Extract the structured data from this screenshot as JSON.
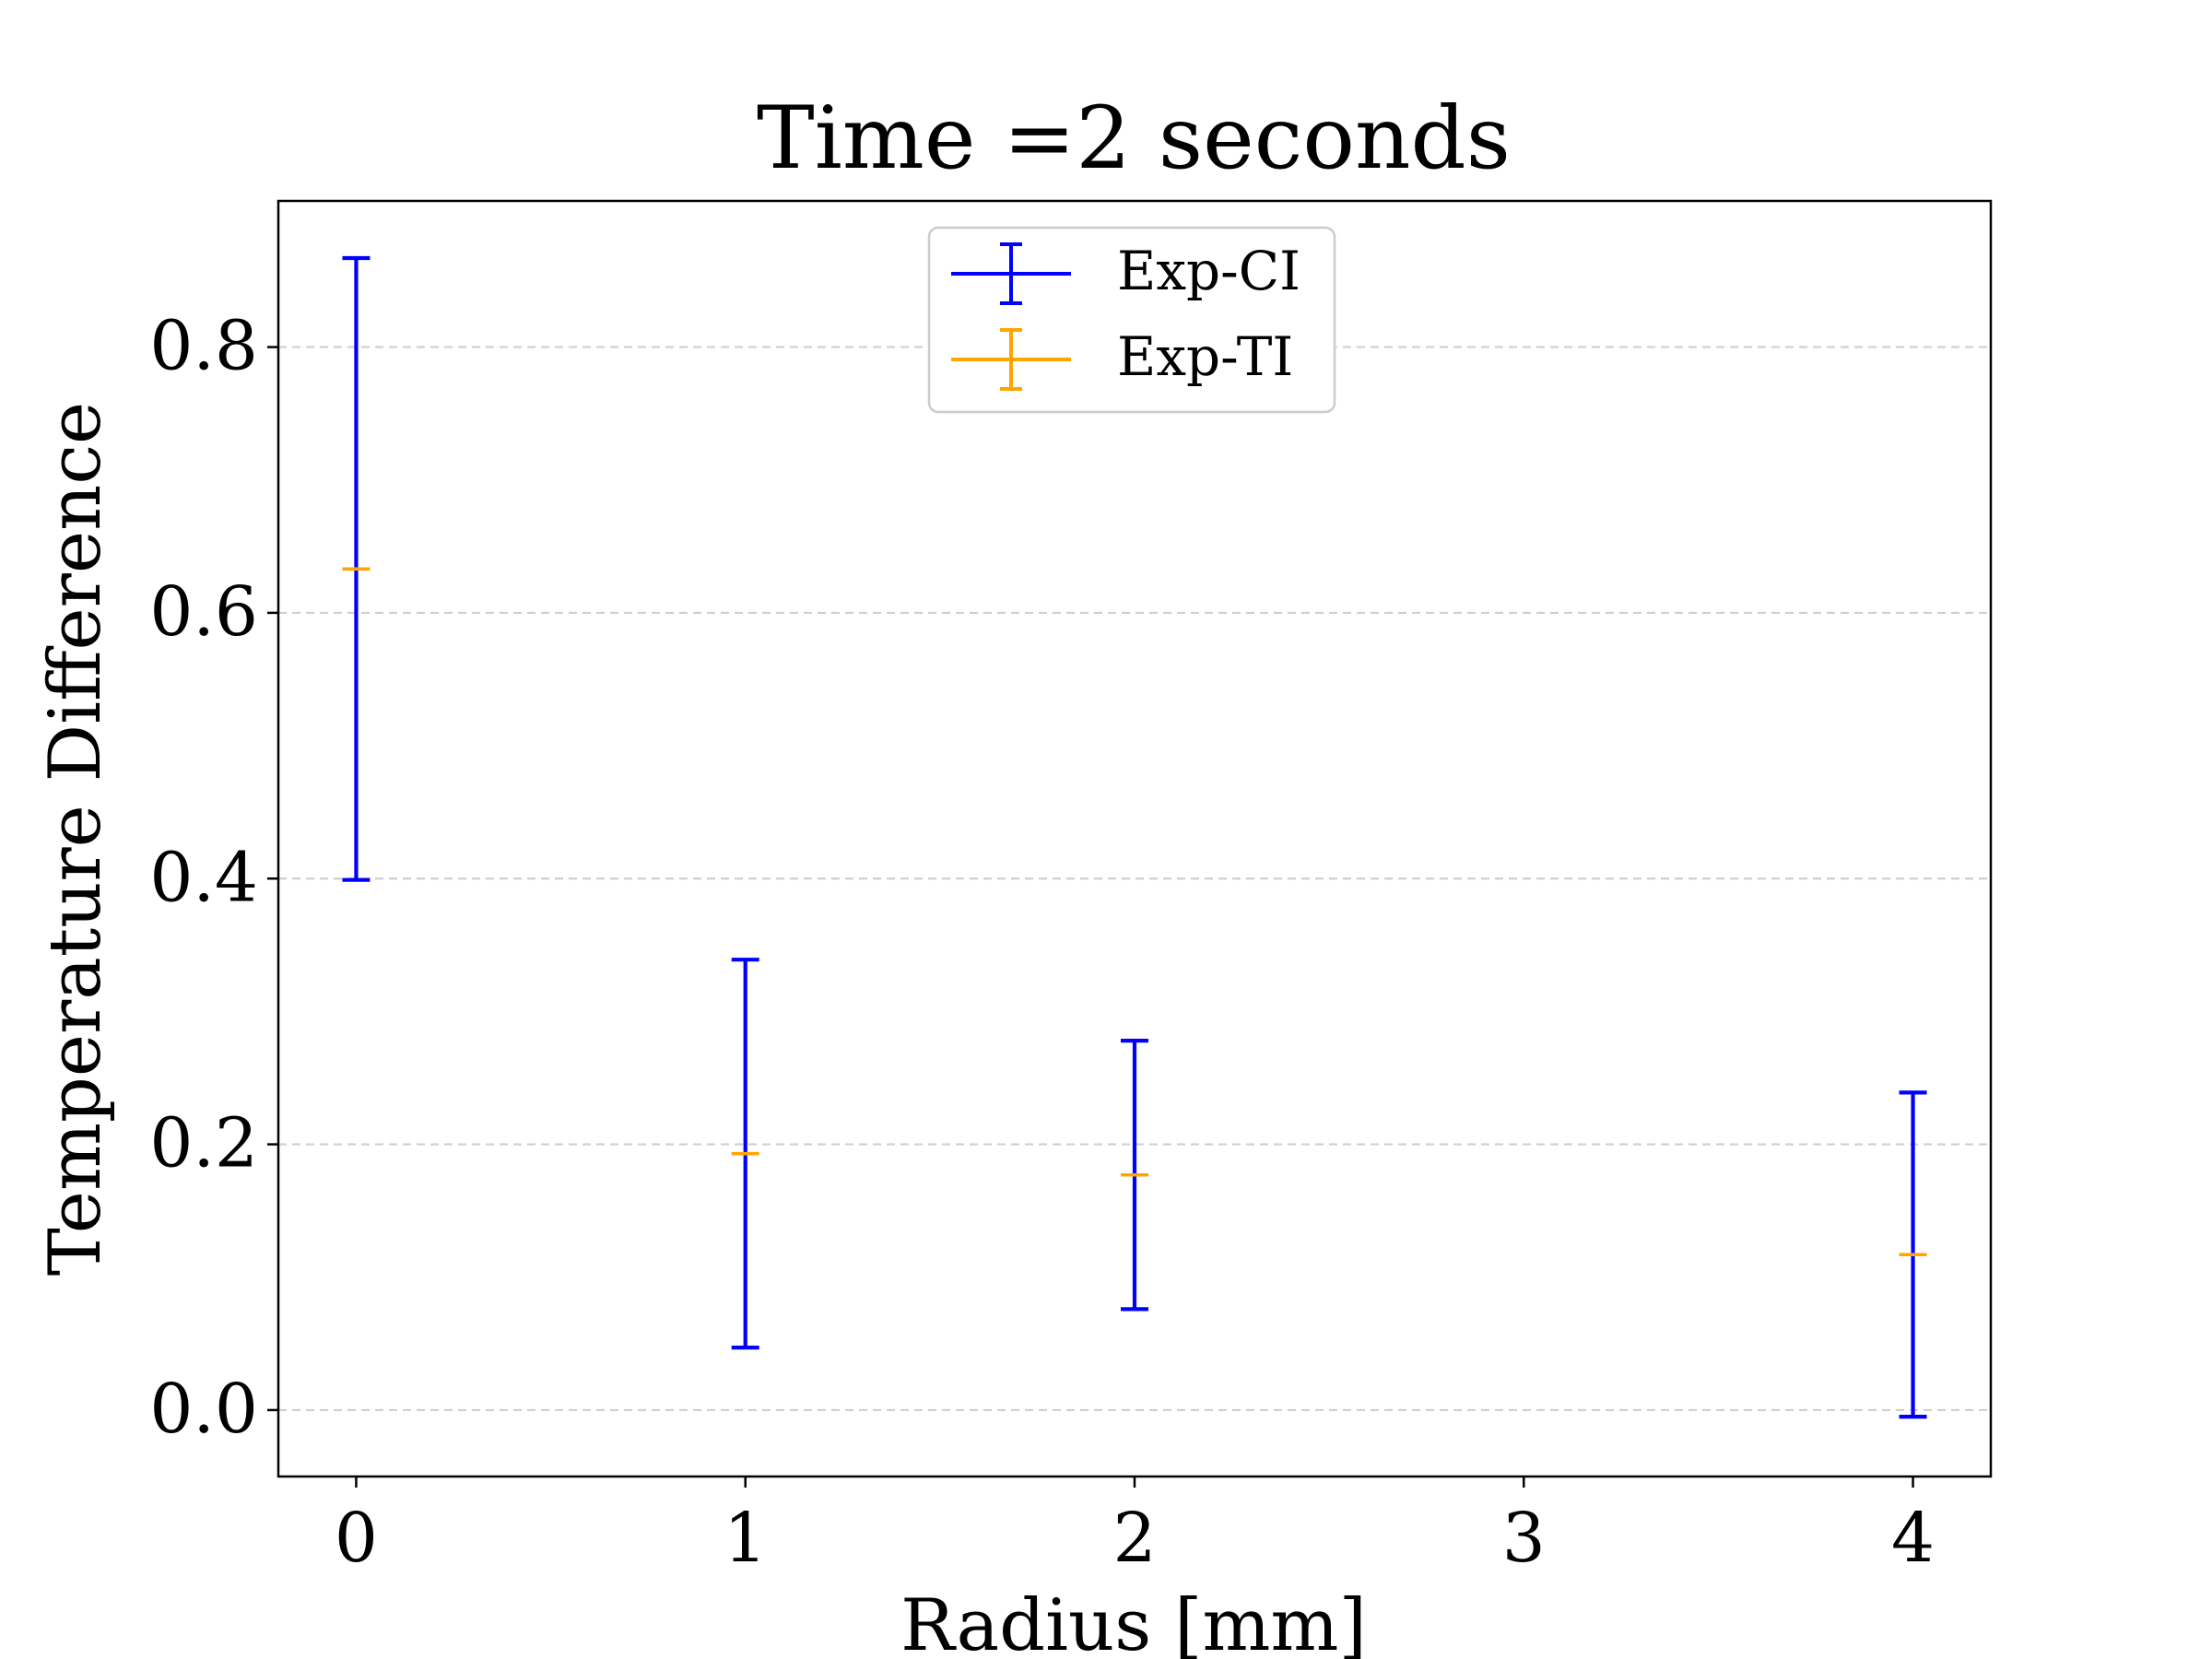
{
  "chart_data": {
    "type": "errorbar",
    "title": "Time =2 seconds",
    "xlabel": "Radius [mm]",
    "ylabel": "Temperature Difference",
    "xlim": [
      -0.2,
      4.2
    ],
    "ylim": [
      -0.05,
      0.91
    ],
    "xticks": [
      "0",
      "1",
      "2",
      "3",
      "4"
    ],
    "yticks": [
      "0.0",
      "0.2",
      "0.4",
      "0.6",
      "0.8"
    ],
    "grid": "horizontal-dashed",
    "legend_position": "upper center",
    "series": [
      {
        "name": "Exp-CI",
        "color": "#0000ff",
        "points": [
          {
            "x": 0,
            "y": 0.633,
            "low": 0.399,
            "high": 0.867
          },
          {
            "x": 1,
            "y": 0.193,
            "low": 0.047,
            "high": 0.339
          },
          {
            "x": 2,
            "y": 0.177,
            "low": 0.076,
            "high": 0.278
          },
          {
            "x": 4,
            "y": 0.117,
            "low": -0.005,
            "high": 0.239
          }
        ]
      },
      {
        "name": "Exp-TI",
        "color": "#ffa500",
        "points": [
          {
            "x": 0,
            "y": 0.633,
            "low": 0.633,
            "high": 0.633
          },
          {
            "x": 1,
            "y": 0.193,
            "low": 0.193,
            "high": 0.193
          },
          {
            "x": 2,
            "y": 0.177,
            "low": 0.177,
            "high": 0.177
          },
          {
            "x": 4,
            "y": 0.117,
            "low": 0.117,
            "high": 0.117
          }
        ]
      }
    ]
  }
}
